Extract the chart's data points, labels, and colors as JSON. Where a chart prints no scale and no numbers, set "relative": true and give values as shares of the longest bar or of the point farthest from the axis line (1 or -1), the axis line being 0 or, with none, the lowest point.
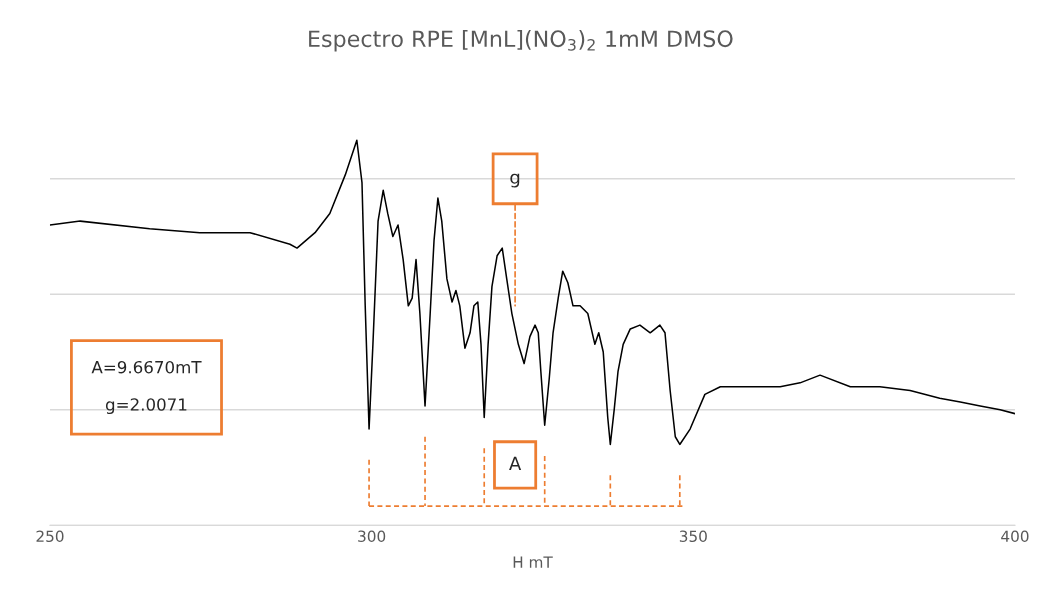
{
  "chart_data": {
    "type": "line",
    "title": "Espectro RPE [MnL](NO$_{3}$)$_{2}$ 1mM DMSO",
    "xlabel": "H mT",
    "relative": true,
    "xlim": [
      250,
      400
    ],
    "xticks": [
      250,
      300,
      350,
      400
    ],
    "grid": "y",
    "tick_labels": "x",
    "legend": false,
    "series": [
      {
        "color": "#000000",
        "x": [
          250.0,
          254.7,
          265.5,
          273.3,
          281.1,
          287.3,
          288.4,
          291.2,
          293.5,
          295.9,
          297.7,
          298.5,
          299.0,
          299.6,
          300.2,
          301.0,
          301.8,
          302.5,
          303.3,
          304.1,
          304.9,
          305.7,
          306.3,
          306.9,
          307.5,
          308.3,
          309.1,
          309.7,
          310.3,
          310.9,
          311.7,
          312.5,
          313.1,
          313.7,
          314.5,
          315.3,
          315.9,
          316.5,
          317.0,
          317.5,
          318.1,
          318.7,
          319.5,
          320.3,
          321.0,
          321.8,
          322.8,
          323.7,
          324.6,
          325.4,
          325.9,
          326.3,
          326.9,
          327.6,
          328.2,
          329.0,
          329.7,
          330.5,
          331.3,
          332.4,
          333.6,
          334.7,
          335.3,
          336.0,
          336.7,
          337.1,
          337.7,
          338.3,
          339.1,
          340.2,
          341.7,
          343.3,
          344.8,
          345.6,
          346.4,
          347.2,
          347.9,
          349.5,
          351.8,
          354.2,
          358.8,
          363.5,
          366.6,
          369.7,
          374.4,
          379.0,
          383.7,
          388.3,
          391.5,
          394.6,
          397.7,
          400.0
        ],
        "values": [
          0.78,
          0.79,
          0.77,
          0.76,
          0.76,
          0.73,
          0.72,
          0.76,
          0.81,
          0.91,
          1.0,
          0.89,
          0.57,
          0.25,
          0.47,
          0.79,
          0.87,
          0.81,
          0.75,
          0.78,
          0.69,
          0.57,
          0.59,
          0.69,
          0.55,
          0.31,
          0.55,
          0.74,
          0.85,
          0.79,
          0.64,
          0.58,
          0.61,
          0.57,
          0.46,
          0.5,
          0.57,
          0.58,
          0.47,
          0.28,
          0.47,
          0.62,
          0.7,
          0.72,
          0.64,
          0.55,
          0.47,
          0.42,
          0.49,
          0.52,
          0.5,
          0.4,
          0.26,
          0.38,
          0.5,
          0.59,
          0.66,
          0.63,
          0.57,
          0.57,
          0.55,
          0.47,
          0.5,
          0.45,
          0.28,
          0.21,
          0.3,
          0.4,
          0.47,
          0.51,
          0.52,
          0.5,
          0.52,
          0.5,
          0.35,
          0.23,
          0.21,
          0.25,
          0.34,
          0.36,
          0.36,
          0.36,
          0.37,
          0.39,
          0.36,
          0.36,
          0.35,
          0.33,
          0.32,
          0.31,
          0.3,
          0.29
        ]
      }
    ],
    "annotations": [
      {
        "text": "g",
        "x": 322.3,
        "y": 0.57
      },
      "A",
      "A=9.6670mT\n\ng=2.0071"
    ]
  }
}
